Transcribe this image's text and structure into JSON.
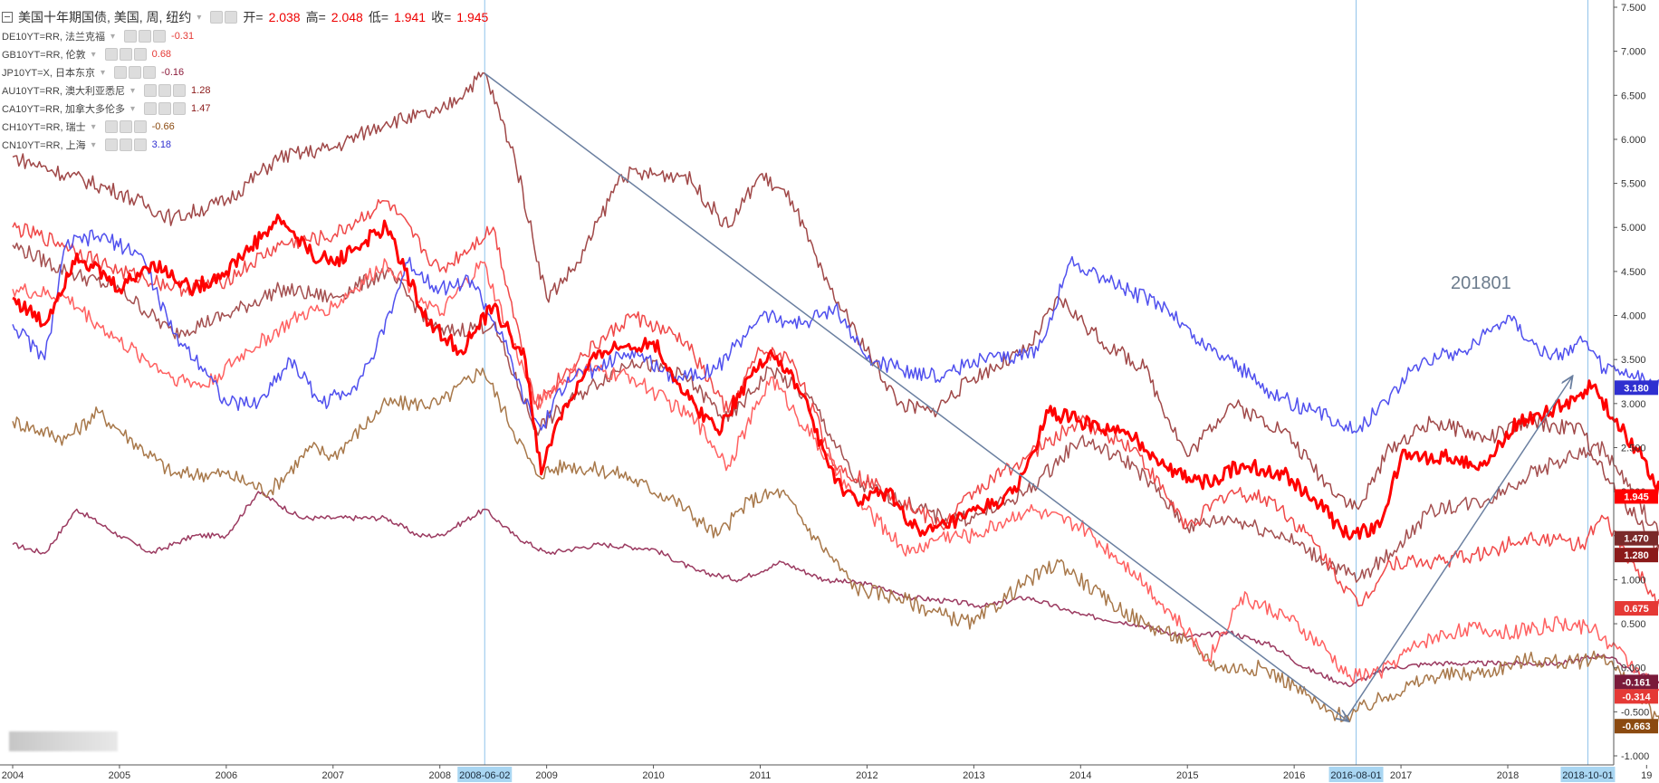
{
  "legend": {
    "main": {
      "title": "美国十年期国债, 美国, 周, 纽约",
      "open_label": "开=",
      "open": "2.038",
      "high_label": "高=",
      "high": "2.048",
      "low_label": "低=",
      "low": "1.941",
      "close_label": "收=",
      "close": "1.945"
    },
    "items": [
      {
        "symbol": "DE10YT=RR, 法兰克福",
        "value": "-0.31",
        "color": "#e53935"
      },
      {
        "symbol": "GB10YT=RR, 伦敦",
        "value": "0.68",
        "color": "#e53935"
      },
      {
        "symbol": "JP10YT=X, 日本东京",
        "value": "-0.16",
        "color": "#8b1a3a"
      },
      {
        "symbol": "AU10YT=RR, 澳大利亚悉尼",
        "value": "1.28",
        "color": "#8b1a1a"
      },
      {
        "symbol": "CA10YT=RR, 加拿大多伦多",
        "value": "1.47",
        "color": "#8b1a1a"
      },
      {
        "symbol": "CH10YT=RR, 瑞士",
        "value": "-0.66",
        "color": "#8b4a10"
      },
      {
        "symbol": "CN10YT=RR, 上海",
        "value": "3.18",
        "color": "#3030d0"
      }
    ]
  },
  "annotation_text": "201801",
  "colors": {
    "us": "#ff0000",
    "de": "#ff6060",
    "gb": "#f04848",
    "jp": "#9b3a60",
    "au": "#a04848",
    "ca": "#a45050",
    "ch": "#a8784a",
    "cn": "#5050ee",
    "vline": "#8fc3ea",
    "arrow": "#6a7fa0"
  },
  "chart_data": {
    "type": "line",
    "x_range": [
      2004.0,
      2019.6
    ],
    "ylim": [
      -1.0,
      7.5
    ],
    "x_ticks": [
      "2004",
      "2005",
      "2006",
      "2007",
      "2008",
      "2009",
      "2010",
      "2011",
      "2012",
      "2013",
      "2014",
      "2015",
      "2016",
      "2017",
      "2018",
      "19"
    ],
    "x_tick_values": [
      2004,
      2005,
      2006,
      2007,
      2008,
      2009,
      2010,
      2011,
      2012,
      2013,
      2014,
      2015,
      2016,
      2017,
      2018,
      2019.3
    ],
    "y_ticks": [
      "7.500",
      "7.000",
      "6.500",
      "6.000",
      "5.500",
      "5.000",
      "4.500",
      "4.000",
      "3.500",
      "3.000",
      "2.500",
      "2.000",
      "1.500",
      "1.000",
      "0.500",
      "0.000",
      "-0.500",
      "-1.000"
    ],
    "y_tick_values": [
      7.5,
      7.0,
      6.5,
      6.0,
      5.5,
      5.0,
      4.5,
      4.0,
      3.5,
      3.0,
      2.5,
      2.0,
      1.5,
      1.0,
      0.5,
      0.0,
      -0.5,
      -1.0
    ],
    "highlighted_dates": [
      {
        "label": "2008-06-02",
        "x": 2008.42
      },
      {
        "label": "2016-08-01",
        "x": 2016.58
      },
      {
        "label": "2018-10-01",
        "x": 2018.75
      }
    ],
    "last_value_badges": [
      {
        "label": "3.180",
        "value": 3.18,
        "color": "#2f2fd0"
      },
      {
        "label": "1.945",
        "value": 1.945,
        "color": "#ff0000"
      },
      {
        "label": "1.470",
        "value": 1.47,
        "color": "#7a2a2a"
      },
      {
        "label": "1.280",
        "value": 1.28,
        "color": "#8b1a1a"
      },
      {
        "label": "0.675",
        "value": 0.675,
        "color": "#e53935"
      },
      {
        "label": "-0.161",
        "value": -0.161,
        "color": "#7a1a3a"
      },
      {
        "label": "-0.314",
        "value": -0.314,
        "color": "#e53935"
      },
      {
        "label": "-0.663",
        "value": -0.663,
        "color": "#8b4a10"
      }
    ],
    "arrows": [
      {
        "from": [
          2008.42,
          6.75
        ],
        "to": [
          2016.5,
          -0.6
        ]
      },
      {
        "from": [
          2016.5,
          -0.55
        ],
        "to": [
          2018.6,
          3.3
        ]
      }
    ],
    "series": [
      {
        "key": "us",
        "color": "#ff0000",
        "width": 3,
        "x": [
          2004.0,
          2004.3,
          2004.6,
          2005.0,
          2005.3,
          2005.7,
          2006.0,
          2006.5,
          2006.8,
          2007.0,
          2007.5,
          2007.9,
          2008.2,
          2008.5,
          2008.8,
          2008.95,
          2009.1,
          2009.5,
          2010.0,
          2010.3,
          2010.6,
          2010.9,
          2011.1,
          2011.4,
          2011.7,
          2011.9,
          2012.2,
          2012.5,
          2012.9,
          2013.4,
          2013.7,
          2014.0,
          2014.5,
          2014.9,
          2015.2,
          2015.5,
          2015.9,
          2016.2,
          2016.5,
          2016.8,
          2017.0,
          2017.4,
          2017.8,
          2018.1,
          2018.4,
          2018.8,
          2019.0,
          2019.2,
          2019.45
        ],
        "y": [
          4.2,
          3.9,
          4.7,
          4.3,
          4.6,
          4.3,
          4.5,
          5.1,
          4.7,
          4.6,
          5.0,
          3.9,
          3.6,
          4.1,
          3.5,
          2.2,
          2.8,
          3.6,
          3.7,
          3.1,
          2.7,
          3.3,
          3.6,
          3.1,
          2.1,
          1.9,
          2.0,
          1.5,
          1.7,
          2.0,
          2.9,
          2.8,
          2.6,
          2.2,
          2.1,
          2.3,
          2.2,
          1.9,
          1.5,
          1.6,
          2.4,
          2.4,
          2.3,
          2.8,
          2.9,
          3.2,
          2.8,
          2.5,
          1.945
        ]
      },
      {
        "key": "de",
        "color": "#ff6060",
        "width": 1.5,
        "x": [
          2004.0,
          2004.5,
          2005.0,
          2005.5,
          2005.8,
          2006.2,
          2006.7,
          2007.0,
          2007.5,
          2008.0,
          2008.4,
          2008.9,
          2009.3,
          2009.8,
          2010.4,
          2010.7,
          2011.1,
          2011.5,
          2011.9,
          2012.4,
          2012.7,
          2013.0,
          2013.5,
          2014.0,
          2014.5,
          2015.0,
          2015.2,
          2015.5,
          2015.9,
          2016.3,
          2016.5,
          2016.8,
          2017.2,
          2017.6,
          2018.0,
          2018.5,
          2018.8,
          2019.2,
          2019.45
        ],
        "y": [
          4.3,
          4.2,
          3.7,
          3.3,
          3.2,
          3.6,
          4.0,
          4.1,
          4.6,
          4.0,
          4.6,
          3.0,
          3.4,
          3.3,
          2.8,
          2.3,
          3.3,
          2.6,
          1.9,
          1.3,
          1.5,
          1.5,
          1.8,
          1.6,
          1.1,
          0.4,
          0.1,
          0.8,
          0.6,
          0.2,
          -0.1,
          -0.05,
          0.3,
          0.45,
          0.4,
          0.5,
          0.45,
          0.0,
          -0.314
        ]
      },
      {
        "key": "gb",
        "color": "#f04848",
        "width": 1.5,
        "x": [
          2004.0,
          2004.5,
          2005.0,
          2005.6,
          2006.0,
          2006.5,
          2007.0,
          2007.5,
          2008.0,
          2008.5,
          2008.9,
          2009.3,
          2009.8,
          2010.3,
          2010.7,
          2011.0,
          2011.3,
          2011.7,
          2012.2,
          2012.7,
          2013.0,
          2013.5,
          2014.0,
          2014.5,
          2015.0,
          2015.4,
          2015.8,
          2016.2,
          2016.6,
          2016.9,
          2017.3,
          2017.8,
          2018.2,
          2018.7,
          2018.9,
          2019.2,
          2019.45
        ],
        "y": [
          5.0,
          4.8,
          4.5,
          4.3,
          4.4,
          4.8,
          4.9,
          5.3,
          4.5,
          5.0,
          3.0,
          3.5,
          4.0,
          3.7,
          2.9,
          3.6,
          3.5,
          2.3,
          2.0,
          1.6,
          2.0,
          2.4,
          2.8,
          2.5,
          1.6,
          2.0,
          1.9,
          1.4,
          0.7,
          1.2,
          1.2,
          1.3,
          1.5,
          1.4,
          1.7,
          1.1,
          0.675
        ]
      },
      {
        "key": "au",
        "color": "#a04848",
        "width": 1.5,
        "x": [
          2004.0,
          2004.5,
          2005.0,
          2005.5,
          2006.0,
          2006.5,
          2007.0,
          2007.5,
          2008.0,
          2008.42,
          2008.7,
          2009.0,
          2009.3,
          2009.7,
          2010.3,
          2010.7,
          2011.0,
          2011.3,
          2011.6,
          2011.9,
          2012.3,
          2012.6,
          2013.0,
          2013.5,
          2013.8,
          2014.2,
          2014.6,
          2015.0,
          2015.4,
          2015.9,
          2016.3,
          2016.6,
          2016.9,
          2017.3,
          2017.8,
          2018.2,
          2018.7,
          2018.9,
          2019.2,
          2019.45
        ],
        "y": [
          5.8,
          5.6,
          5.4,
          5.1,
          5.3,
          5.8,
          5.9,
          6.2,
          6.3,
          6.75,
          5.8,
          4.2,
          4.6,
          5.6,
          5.6,
          5.0,
          5.6,
          5.3,
          4.4,
          3.8,
          3.0,
          2.9,
          3.3,
          3.6,
          4.2,
          3.7,
          3.4,
          2.4,
          3.0,
          2.7,
          2.1,
          1.8,
          2.5,
          2.8,
          2.6,
          2.8,
          2.7,
          2.2,
          1.7,
          1.28
        ]
      },
      {
        "key": "ca",
        "color": "#a45050",
        "width": 1.5,
        "x": [
          2004.0,
          2004.5,
          2005.0,
          2005.5,
          2006.0,
          2006.5,
          2007.0,
          2007.5,
          2008.0,
          2008.5,
          2008.9,
          2009.3,
          2009.8,
          2010.3,
          2010.7,
          2011.1,
          2011.5,
          2011.9,
          2012.3,
          2012.7,
          2013.0,
          2013.5,
          2014.0,
          2014.5,
          2015.0,
          2015.4,
          2015.9,
          2016.3,
          2016.6,
          2016.9,
          2017.3,
          2017.8,
          2018.2,
          2018.6,
          2018.9,
          2019.2,
          2019.45
        ],
        "y": [
          4.8,
          4.5,
          4.3,
          3.8,
          4.0,
          4.3,
          4.2,
          4.5,
          3.8,
          3.9,
          2.7,
          3.1,
          3.5,
          3.3,
          2.8,
          3.4,
          3.0,
          2.1,
          1.9,
          1.7,
          1.7,
          2.0,
          2.6,
          2.3,
          1.6,
          1.7,
          1.5,
          1.2,
          1.0,
          1.3,
          1.8,
          1.9,
          2.2,
          2.4,
          2.5,
          1.9,
          1.47
        ]
      },
      {
        "key": "ch",
        "color": "#a8784a",
        "width": 1.5,
        "x": [
          2004.0,
          2004.5,
          2004.8,
          2005.0,
          2005.5,
          2006.0,
          2006.4,
          2006.8,
          2007.0,
          2007.5,
          2008.0,
          2008.4,
          2008.9,
          2009.2,
          2009.7,
          2010.2,
          2010.6,
          2010.9,
          2011.2,
          2011.5,
          2011.9,
          2012.3,
          2012.7,
          2013.0,
          2013.4,
          2013.8,
          2014.2,
          2014.6,
          2015.0,
          2015.3,
          2015.7,
          2016.0,
          2016.3,
          2016.5,
          2016.9,
          2017.3,
          2017.8,
          2018.2,
          2018.6,
          2018.9,
          2019.2,
          2019.45
        ],
        "y": [
          2.8,
          2.6,
          2.9,
          2.7,
          2.2,
          2.2,
          2.0,
          2.5,
          2.4,
          3.0,
          3.0,
          3.4,
          2.2,
          2.3,
          2.2,
          1.9,
          1.5,
          1.9,
          2.0,
          1.5,
          0.9,
          0.8,
          0.6,
          0.5,
          0.9,
          1.2,
          0.8,
          0.5,
          0.3,
          0.0,
          0.0,
          -0.2,
          -0.5,
          -0.55,
          -0.3,
          -0.1,
          -0.05,
          0.1,
          0.05,
          0.15,
          -0.3,
          -0.663
        ]
      },
      {
        "key": "jp",
        "color": "#9b3a60",
        "width": 1.5,
        "x": [
          2004.0,
          2004.3,
          2004.6,
          2005.0,
          2005.3,
          2005.7,
          2006.0,
          2006.3,
          2006.7,
          2007.0,
          2007.5,
          2007.8,
          2008.0,
          2008.42,
          2008.7,
          2009.0,
          2009.5,
          2010.0,
          2010.4,
          2010.8,
          2011.2,
          2011.6,
          2012.0,
          2012.4,
          2012.8,
          2013.1,
          2013.5,
          2014.0,
          2014.5,
          2015.0,
          2015.4,
          2015.8,
          2016.1,
          2016.5,
          2016.9,
          2017.3,
          2017.7,
          2018.1,
          2018.5,
          2018.9,
          2019.2,
          2019.45
        ],
        "y": [
          1.4,
          1.3,
          1.8,
          1.5,
          1.3,
          1.5,
          1.5,
          2.0,
          1.7,
          1.7,
          1.7,
          1.5,
          1.5,
          1.8,
          1.5,
          1.3,
          1.4,
          1.35,
          1.1,
          1.0,
          1.2,
          1.0,
          0.95,
          0.8,
          0.75,
          0.7,
          0.8,
          0.6,
          0.5,
          0.35,
          0.4,
          0.25,
          0.0,
          -0.2,
          0.0,
          0.05,
          0.05,
          0.05,
          0.05,
          0.15,
          -0.05,
          -0.161
        ]
      },
      {
        "key": "cn",
        "color": "#5050ee",
        "width": 1.5,
        "x": [
          2004.0,
          2004.3,
          2004.5,
          2004.8,
          2005.2,
          2005.5,
          2005.8,
          2006.0,
          2006.3,
          2006.6,
          2006.9,
          2007.2,
          2007.4,
          2007.7,
          2008.0,
          2008.3,
          2008.6,
          2008.8,
          2008.95,
          2009.2,
          2009.5,
          2009.8,
          2010.2,
          2010.6,
          2010.8,
          2011.0,
          2011.4,
          2011.7,
          2012.0,
          2012.3,
          2012.7,
          2013.0,
          2013.3,
          2013.6,
          2013.9,
          2014.1,
          2014.4,
          2014.8,
          2015.1,
          2015.4,
          2015.8,
          2016.2,
          2016.6,
          2016.9,
          2017.2,
          2017.6,
          2017.9,
          2018.0,
          2018.4,
          2018.7,
          2018.9,
          2019.2,
          2019.45
        ],
        "y": [
          3.9,
          3.5,
          4.8,
          4.9,
          4.7,
          3.8,
          3.4,
          3.0,
          3.0,
          3.5,
          3.0,
          3.2,
          3.6,
          4.6,
          4.3,
          4.4,
          3.7,
          3.0,
          2.7,
          3.3,
          3.4,
          3.6,
          3.3,
          3.4,
          3.7,
          4.0,
          3.9,
          4.1,
          3.5,
          3.4,
          3.3,
          3.5,
          3.5,
          3.6,
          4.6,
          4.5,
          4.3,
          4.1,
          3.7,
          3.5,
          3.1,
          2.9,
          2.7,
          3.1,
          3.5,
          3.6,
          3.9,
          4.0,
          3.5,
          3.7,
          3.4,
          3.3,
          3.18
        ]
      }
    ]
  }
}
